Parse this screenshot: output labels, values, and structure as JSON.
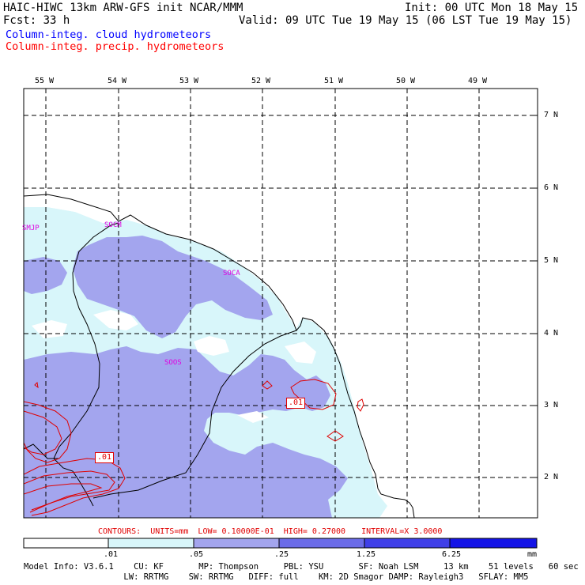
{
  "header": {
    "line1_left": "HAIC-HIWC 13km ARW-GFS init   NCAR/MMM",
    "line1_right": "Init: 00 UTC Mon 18 May 15",
    "line2_left": "Fcst:   33 h",
    "line2_right": "Valid: 09 UTC Tue 19 May 15 (06 LST Tue 19 May 15)"
  },
  "legend": {
    "cloud": "Column-integ. cloud hydrometeors",
    "precip": "Column-integ. precip. hydrometeors",
    "cloud_color": "#0000ff",
    "precip_color": "#ff0000"
  },
  "map": {
    "lon_labels": [
      "55 W",
      "54 W",
      "53 W",
      "52 W",
      "51 W",
      "50 W",
      "49 W"
    ],
    "lat_labels": [
      "7 N",
      "6 N",
      "5 N",
      "4 N",
      "3 N",
      "2 N"
    ],
    "stations": [
      "SMJP",
      "SOCM",
      "SOCA",
      "SOOS"
    ],
    "contour_labels": [
      ".01",
      ".01"
    ],
    "fill_colors": [
      "#d8f6fa",
      "#a3a5ee",
      "#6b6ce8",
      "#4040e8",
      "#1414e6"
    ]
  },
  "contours_line": {
    "label": "CONTOURS:",
    "units": "UNITS=mm",
    "low": "LOW= 0.10000E-01",
    "high": "HIGH= 0.27000",
    "interval": "INTERVAL=X  3.0000"
  },
  "colorbar": {
    "ticks": [
      ".01",
      ".05",
      ".25",
      "1.25",
      "6.25"
    ],
    "unit": "mm",
    "colors": [
      "#ffffff",
      "#d8f6fa",
      "#a3a5ee",
      "#6b6ce8",
      "#4040e8",
      "#1414e6"
    ]
  },
  "model_info": {
    "line1": "Model Info: V3.6.1    CU: KF       MP: Thompson     PBL: YSU       SF: Noah LSM     13 km    51 levels   60 sec",
    "line2": "                    LW: RRTMG    SW: RRTMG   DIFF: full    KM: 2D Smagor DAMP: Rayleigh3   SFLAY: MM5"
  }
}
